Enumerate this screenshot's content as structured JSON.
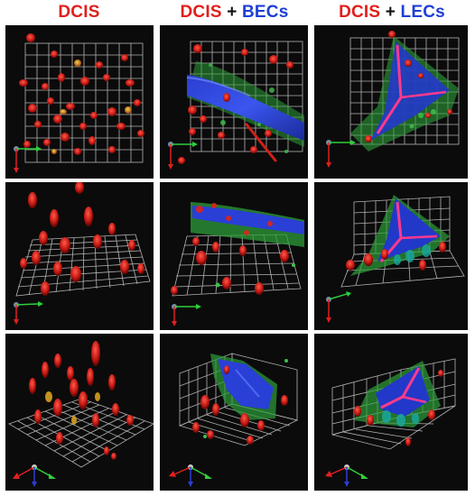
{
  "headers": [
    {
      "parts": [
        {
          "text": "DCIS",
          "color": "#e0201c"
        }
      ]
    },
    {
      "parts": [
        {
          "text": "DCIS",
          "color": "#e0201c"
        },
        {
          "text": " + ",
          "color": "#111111"
        },
        {
          "text": "BECs",
          "color": "#1f3fd6"
        }
      ]
    },
    {
      "parts": [
        {
          "text": "DCIS",
          "color": "#e0201c"
        },
        {
          "text": " + ",
          "color": "#111111"
        },
        {
          "text": "LECs",
          "color": "#1f3fd6"
        }
      ]
    }
  ],
  "colors": {
    "dcis_cells": "#e0201c",
    "vessel_cells": "#1f3fd6",
    "stroma": "#2e9e3a",
    "panel_bg": "#0b0b0b",
    "grid": "#cfcfcf"
  },
  "columns": [
    "dcis",
    "dcis-becs",
    "dcis-lecs"
  ],
  "rows": [
    "top-view",
    "tilted-view",
    "oblique-3d-view"
  ]
}
